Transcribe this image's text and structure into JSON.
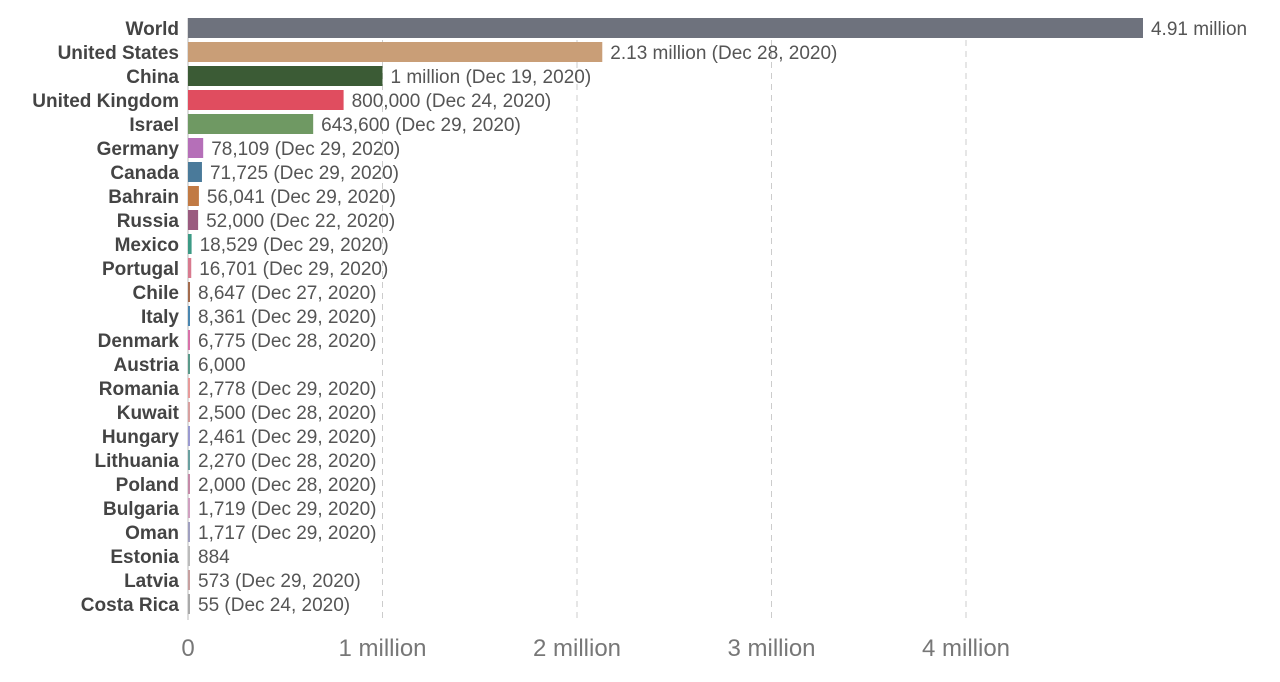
{
  "chart_data": {
    "type": "bar",
    "orientation": "horizontal",
    "title": "",
    "xlabel": "",
    "ylabel": "",
    "xlim": [
      0,
      5000000
    ],
    "grid": true,
    "legend": "none",
    "categories": [
      "World",
      "United States",
      "China",
      "United Kingdom",
      "Israel",
      "Germany",
      "Canada",
      "Bahrain",
      "Russia",
      "Mexico",
      "Portugal",
      "Chile",
      "Italy",
      "Denmark",
      "Austria",
      "Romania",
      "Kuwait",
      "Hungary",
      "Lithuania",
      "Poland",
      "Bulgaria",
      "Oman",
      "Estonia",
      "Latvia",
      "Costa Rica"
    ],
    "values": [
      4910000,
      2130000,
      1000000,
      800000,
      643600,
      78109,
      71725,
      56041,
      52000,
      18529,
      16701,
      8647,
      8361,
      6775,
      6000,
      2778,
      2500,
      2461,
      2270,
      2000,
      1719,
      1717,
      884,
      573,
      55
    ],
    "value_labels": [
      "4.91 million",
      "2.13 million (Dec 28, 2020)",
      "1 million (Dec 19, 2020)",
      "800,000 (Dec 24, 2020)",
      "643,600 (Dec 29, 2020)",
      "78,109 (Dec 29, 2020)",
      "71,725 (Dec 29, 2020)",
      "56,041 (Dec 29, 2020)",
      "52,000 (Dec 22, 2020)",
      "18,529 (Dec 29, 2020)",
      "16,701 (Dec 29, 2020)",
      "8,647 (Dec 27, 2020)",
      "8,361 (Dec 29, 2020)",
      "6,775 (Dec 28, 2020)",
      "6,000",
      "2,778 (Dec 29, 2020)",
      "2,500 (Dec 28, 2020)",
      "2,461 (Dec 29, 2020)",
      "2,270 (Dec 28, 2020)",
      "2,000 (Dec 28, 2020)",
      "1,719 (Dec 29, 2020)",
      "1,717 (Dec 29, 2020)",
      "884",
      "573 (Dec 29, 2020)",
      "55 (Dec 24, 2020)"
    ],
    "colors": [
      "#6e727d",
      "#c99e77",
      "#3b5b35",
      "#e04d5f",
      "#6f9963",
      "#b56fb8",
      "#4a7a9a",
      "#c17a44",
      "#9a5b7f",
      "#3c9a85",
      "#d87a8f",
      "#a36b4d",
      "#4a86b0",
      "#d871a9",
      "#5a9a8a",
      "#e89a9a",
      "#d8a0a0",
      "#9a9ad0",
      "#6aa0a0",
      "#c58aa8",
      "#d0a0c0",
      "#a0a0c0",
      "#bbbbbb",
      "#c7a0a0",
      "#aaaaaa"
    ],
    "x_ticks": [
      0,
      1000000,
      2000000,
      3000000,
      4000000
    ],
    "x_tick_labels": [
      "0",
      "1 million",
      "2 million",
      "3 million",
      "4 million"
    ]
  }
}
